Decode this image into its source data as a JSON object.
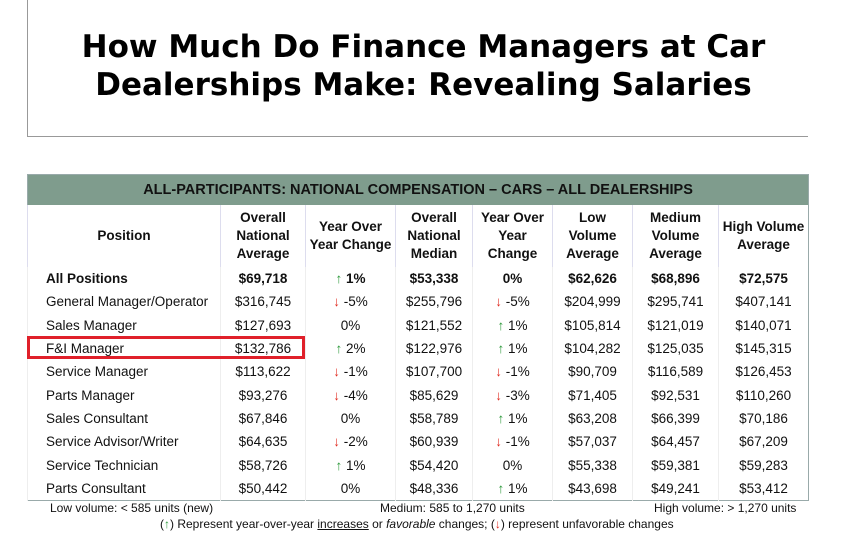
{
  "header": {
    "title": "How Much Do Finance Managers at Car Dealerships Make: Revealing Salaries"
  },
  "table": {
    "caption": "ALL-PARTICIPANTS: NATIONAL COMPENSATION – CARS – ALL DEALERSHIPS",
    "columns": [
      "Position",
      "Overall National Average",
      "Year Over Year Change",
      "Overall National Median",
      "Year Over Year Change",
      "Low Volume Average",
      "Medium Volume Average",
      "High Volume Average"
    ],
    "rows": [
      [
        "All Positions",
        "$69,718",
        {
          "arrow": "↑",
          "value": "1%"
        },
        "$53,338",
        "0%",
        "$62,626",
        "$68,896",
        "$72,575"
      ],
      [
        "General Manager/Operator",
        "$316,745",
        {
          "arrow": "↓",
          "value": "-5%"
        },
        "$255,796",
        {
          "arrow": "↓",
          "value": "-5%"
        },
        "$204,999",
        "$295,741",
        "$407,141"
      ],
      [
        "Sales Manager",
        "$127,693",
        "0%",
        "$121,552",
        {
          "arrow": "↑",
          "value": "1%"
        },
        "$105,814",
        "$121,019",
        "$140,071"
      ],
      [
        "F&I Manager",
        "$132,786",
        {
          "arrow": "↑",
          "value": "2%"
        },
        "$122,976",
        {
          "arrow": "↑",
          "value": "1%"
        },
        "$104,282",
        "$125,035",
        "$145,315"
      ],
      [
        "Service Manager",
        "$113,622",
        {
          "arrow": "↓",
          "value": "-1%"
        },
        "$107,700",
        {
          "arrow": "↓",
          "value": "-1%"
        },
        "$90,709",
        "$116,589",
        "$126,453"
      ],
      [
        "Parts Manager",
        "$93,276",
        {
          "arrow": "↓",
          "value": "-4%"
        },
        "$85,629",
        {
          "arrow": "↓",
          "value": "-3%"
        },
        "$71,405",
        "$92,531",
        "$110,260"
      ],
      [
        "Sales Consultant",
        "$67,846",
        "0%",
        "$58,789",
        {
          "arrow": "↑",
          "value": "1%"
        },
        "$63,208",
        "$66,399",
        "$70,186"
      ],
      [
        "Service Advisor/Writer",
        "$64,635",
        {
          "arrow": "↓",
          "value": "-2%"
        },
        "$60,939",
        {
          "arrow": "↓",
          "value": "-1%"
        },
        "$57,037",
        "$64,457",
        "$67,209"
      ],
      [
        "Service Technician",
        "$58,726",
        {
          "arrow": "↑",
          "value": "1%"
        },
        "$54,420",
        "0%",
        "$55,338",
        "$59,381",
        "$59,283"
      ],
      [
        "Parts Consultant",
        "$50,442",
        "0%",
        "$48,336",
        {
          "arrow": "↑",
          "value": "1%"
        },
        "$43,698",
        "$49,241",
        "$53,412"
      ]
    ]
  },
  "notes": {
    "low": "Low volume: < 585 units (new)",
    "medium": "Medium: 585 to 1,270 units",
    "high": "High volume: > 1,270 units",
    "legend": [
      "(",
      "↑",
      ") Represent year-over-year ",
      "increases",
      " or ",
      "favorable",
      " changes; (",
      "↓",
      ") represent unfavorable changes"
    ]
  }
}
